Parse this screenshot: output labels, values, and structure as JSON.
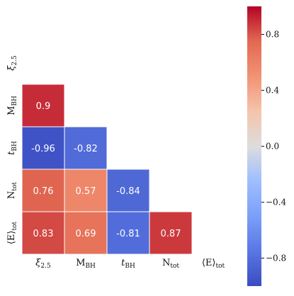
{
  "chart_data": {
    "type": "heatmap",
    "title": "",
    "variables": [
      {
        "base": "ξ",
        "sub": "2.5"
      },
      {
        "base": "M",
        "sub": "BH"
      },
      {
        "base": "t",
        "sub": "BH"
      },
      {
        "base": "N",
        "sub": "tot"
      },
      {
        "base": "⟨E⟩",
        "sub": "tot"
      }
    ],
    "triangle": "lower",
    "values": [
      [
        null,
        null,
        null,
        null,
        null
      ],
      [
        0.9,
        null,
        null,
        null,
        null
      ],
      [
        -0.96,
        -0.82,
        null,
        null,
        null
      ],
      [
        0.76,
        0.57,
        -0.84,
        null,
        null
      ],
      [
        0.83,
        0.69,
        -0.81,
        0.87,
        null
      ]
    ],
    "value_labels": [
      [
        "",
        "",
        "",
        "",
        ""
      ],
      [
        "0.9",
        "",
        "",
        "",
        ""
      ],
      [
        "-0.96",
        "-0.82",
        "",
        "",
        ""
      ],
      [
        "0.76",
        "0.57",
        "-0.84",
        "",
        ""
      ],
      [
        "0.83",
        "0.69",
        "-0.81",
        "0.87",
        ""
      ]
    ],
    "colormap": "coolwarm",
    "color_range": [
      -1,
      1
    ],
    "colorbar": {
      "ticks": [
        0.8,
        0.4,
        0.0,
        -0.4,
        -0.8
      ],
      "tick_labels": [
        "0.8",
        "0.4",
        "0.0",
        "−0.4",
        "−0.8"
      ]
    },
    "colors": {
      "cool": "#3b4cc0",
      "neutral": "#dddddd",
      "warm": "#b40426"
    }
  }
}
